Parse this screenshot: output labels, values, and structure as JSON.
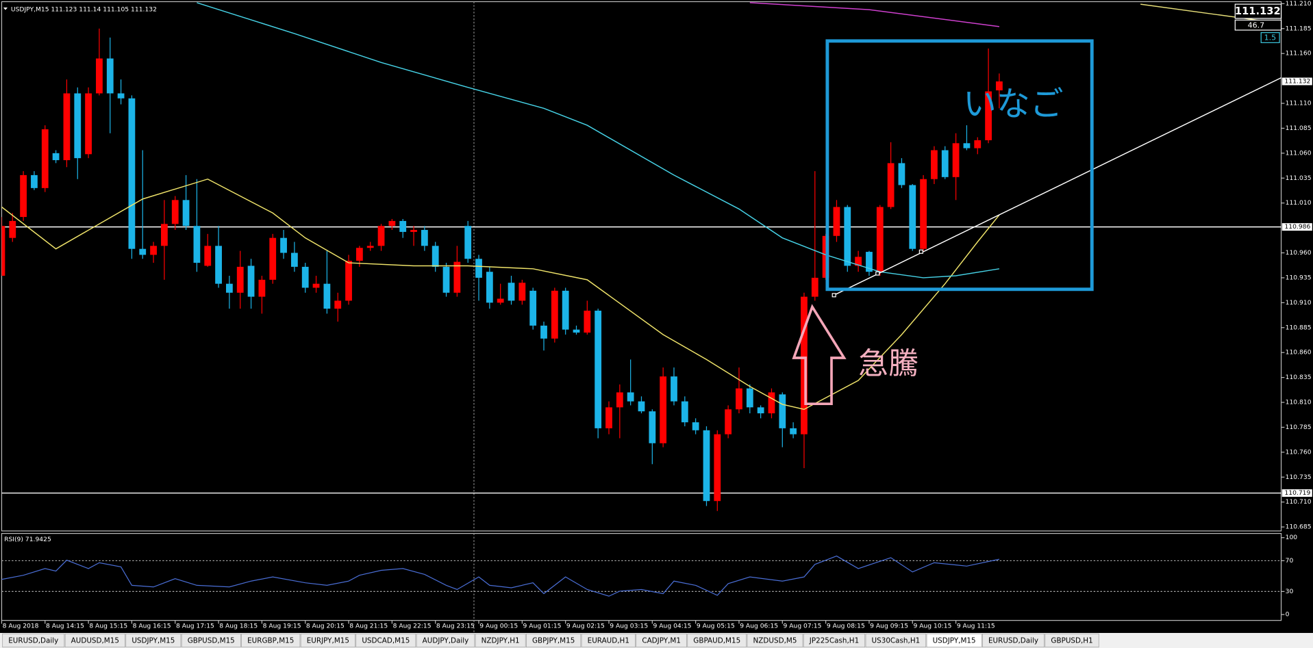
{
  "chart_data": [
    {
      "type": "candlestick",
      "symbol": "USDJPY,M15",
      "up_color": "#ff0000",
      "down_color": "#1cb4e8",
      "xlim": [
        0,
        118
      ],
      "ylim": [
        110.681,
        111.212
      ],
      "xticks": [
        {
          "value": 0,
          "label": "8 Aug 2018"
        },
        {
          "value": 4,
          "label": "8 Aug 14:15"
        },
        {
          "value": 8,
          "label": "8 Aug 15:15"
        },
        {
          "value": 12,
          "label": "8 Aug 16:15"
        },
        {
          "value": 16,
          "label": "8 Aug 17:15"
        },
        {
          "value": 20,
          "label": "8 Aug 18:15"
        },
        {
          "value": 24,
          "label": "8 Aug 19:15"
        },
        {
          "value": 28,
          "label": "8 Aug 20:15"
        },
        {
          "value": 32,
          "label": "8 Aug 21:15"
        },
        {
          "value": 36,
          "label": "8 Aug 22:15"
        },
        {
          "value": 40,
          "label": "8 Aug 23:15"
        },
        {
          "value": 44,
          "label": "9 Aug 00:15"
        },
        {
          "value": 48,
          "label": "9 Aug 01:15"
        },
        {
          "value": 52,
          "label": "9 Aug 02:15"
        },
        {
          "value": 56,
          "label": "9 Aug 03:15"
        },
        {
          "value": 60,
          "label": "9 Aug 04:15"
        },
        {
          "value": 64,
          "label": "9 Aug 05:15"
        },
        {
          "value": 68,
          "label": "9 Aug 06:15"
        },
        {
          "value": 72,
          "label": "9 Aug 07:15"
        },
        {
          "value": 76,
          "label": "9 Aug 08:15"
        },
        {
          "value": 80,
          "label": "9 Aug 09:15"
        },
        {
          "value": 84,
          "label": "9 Aug 10:15"
        },
        {
          "value": 88,
          "label": "9 Aug 11:15"
        }
      ],
      "yticks": [
        {
          "value": 111.21,
          "label": "111.210"
        },
        111.185,
        {
          "value": 111.16,
          "label": "111.160"
        },
        {
          "value": 111.11,
          "label": "111.110"
        },
        111.085,
        {
          "value": 111.06,
          "label": "111.060"
        },
        111.035,
        {
          "value": 111.01,
          "label": "111.010"
        },
        {
          "value": 110.96,
          "label": "110.960"
        },
        110.935,
        {
          "value": 110.91,
          "label": "110.910"
        },
        110.885,
        {
          "value": 110.86,
          "label": "110.860"
        },
        110.835,
        {
          "value": 110.81,
          "label": "110.810"
        },
        110.785,
        {
          "value": 110.76,
          "label": "110.760"
        },
        110.735,
        {
          "value": 110.71,
          "label": "110.710"
        },
        110.685
      ],
      "grid": false,
      "hlines": [
        110.986,
        110.719
      ],
      "hline_color": "#ffffff",
      "open": [
        110.937,
        110.975,
        110.996,
        111.038,
        111.025,
        111.06,
        111.053,
        111.12,
        111.059,
        111.12,
        111.155,
        111.12,
        111.115,
        110.964,
        110.958,
        110.967,
        110.989,
        111.013,
        110.987,
        110.947,
        110.967,
        110.929,
        110.92,
        110.947,
        110.916,
        110.933,
        110.975,
        110.96,
        110.946,
        110.925,
        110.929,
        110.904,
        110.912,
        110.952,
        110.965,
        110.967,
        110.987,
        110.992,
        110.981,
        110.983,
        110.967,
        110.946,
        110.92,
        110.987,
        110.954,
        110.941,
        110.91,
        110.93,
        110.912,
        110.922,
        110.887,
        110.874,
        110.922,
        110.883,
        110.88,
        110.902,
        110.784,
        110.805,
        110.82,
        110.811,
        110.801,
        110.769,
        110.836,
        110.811,
        110.79,
        110.782,
        110.711,
        110.778,
        110.803,
        110.824,
        110.805,
        110.799,
        110.818,
        110.784,
        110.778,
        110.916,
        110.935,
        110.977,
        111.006,
        110.947,
        110.961,
        110.941,
        111.006,
        111.05,
        111.028,
        110.964,
        111.034,
        111.063,
        111.036,
        111.07,
        111.065,
        111.073,
        111.123
      ],
      "high": [
        110.996,
        111.0,
        111.042,
        111.042,
        111.088,
        111.063,
        111.134,
        111.126,
        111.126,
        111.185,
        111.176,
        111.134,
        111.118,
        111.063,
        110.971,
        111.013,
        111.017,
        111.038,
        111.034,
        110.979,
        110.987,
        110.937,
        110.962,
        110.954,
        110.937,
        110.979,
        110.983,
        110.971,
        110.95,
        110.937,
        110.962,
        110.92,
        110.958,
        110.967,
        110.971,
        110.989,
        110.994,
        110.994,
        110.987,
        110.987,
        110.971,
        110.95,
        110.967,
        110.992,
        110.958,
        110.946,
        110.929,
        110.937,
        110.933,
        110.925,
        110.891,
        110.925,
        110.925,
        110.887,
        110.912,
        110.904,
        110.811,
        110.828,
        110.853,
        110.816,
        110.803,
        110.845,
        110.845,
        110.816,
        110.794,
        110.786,
        110.782,
        110.807,
        110.845,
        110.828,
        110.807,
        110.824,
        110.82,
        110.79,
        110.92,
        111.042,
        110.979,
        111.013,
        111.008,
        110.962,
        110.962,
        111.008,
        111.071,
        111.055,
        111.029,
        111.038,
        111.067,
        111.067,
        111.08,
        111.088,
        111.076,
        111.165,
        111.14
      ],
      "low": [
        110.937,
        110.971,
        110.992,
        111.023,
        111.021,
        111.05,
        111.046,
        111.034,
        111.055,
        111.118,
        111.08,
        111.109,
        110.954,
        110.954,
        110.95,
        110.933,
        110.983,
        110.983,
        110.941,
        110.946,
        110.925,
        110.904,
        110.904,
        110.904,
        110.899,
        110.929,
        110.954,
        110.941,
        110.92,
        110.92,
        110.899,
        110.891,
        110.908,
        110.946,
        110.962,
        110.962,
        110.983,
        110.975,
        110.967,
        110.962,
        110.941,
        110.916,
        110.916,
        110.95,
        110.912,
        110.904,
        110.908,
        110.908,
        110.908,
        110.883,
        110.862,
        110.87,
        110.878,
        110.878,
        110.878,
        110.774,
        110.778,
        110.774,
        110.807,
        110.799,
        110.748,
        110.765,
        110.807,
        110.786,
        110.778,
        110.706,
        110.701,
        110.774,
        110.799,
        110.799,
        110.794,
        110.794,
        110.765,
        110.774,
        110.744,
        110.912,
        110.933,
        110.971,
        110.941,
        110.941,
        110.937,
        110.937,
        111.004,
        111.025,
        110.962,
        110.962,
        111.029,
        111.034,
        111.013,
        111.063,
        111.059,
        111.07,
        111.105
      ],
      "close": [
        110.987,
        110.992,
        111.038,
        111.025,
        111.084,
        111.053,
        111.12,
        111.055,
        111.12,
        111.155,
        111.12,
        111.115,
        110.964,
        110.958,
        110.967,
        110.989,
        111.013,
        110.987,
        110.95,
        110.967,
        110.929,
        110.92,
        110.946,
        110.916,
        110.933,
        110.975,
        110.96,
        110.946,
        110.925,
        110.929,
        110.904,
        110.912,
        110.952,
        110.965,
        110.967,
        110.987,
        110.992,
        110.981,
        110.983,
        110.967,
        110.946,
        110.92,
        110.951,
        110.954,
        110.935,
        110.91,
        110.914,
        110.912,
        110.93,
        110.887,
        110.874,
        110.922,
        110.883,
        110.88,
        110.902,
        110.784,
        110.805,
        110.82,
        110.811,
        110.801,
        110.769,
        110.836,
        110.811,
        110.79,
        110.782,
        110.711,
        110.778,
        110.803,
        110.824,
        110.805,
        110.799,
        110.82,
        110.784,
        110.778,
        110.916,
        110.935,
        110.977,
        111.006,
        110.947,
        110.956,
        110.941,
        111.006,
        111.05,
        111.028,
        110.964,
        111.034,
        111.063,
        111.036,
        111.07,
        111.065,
        111.073,
        111.122,
        111.132
      ],
      "overlays": [
        {
          "color": "#f0e46a",
          "x": [
            0,
            5,
            13,
            19,
            25,
            28,
            32,
            38,
            43,
            49,
            54,
            61,
            65,
            69,
            72,
            74,
            79,
            83,
            87,
            90,
            92
          ],
          "values": [
            111.006,
            110.964,
            111.014,
            111.034,
            111.0,
            110.975,
            110.95,
            110.947,
            110.947,
            110.944,
            110.933,
            110.878,
            110.853,
            110.826,
            110.808,
            110.803,
            110.832,
            110.878,
            110.929,
            110.971,
            110.998
          ]
        },
        {
          "color": "#46d2e6",
          "x": [
            18,
            27,
            35,
            43,
            50,
            54,
            62,
            68,
            72,
            76,
            81,
            85,
            88,
            92
          ],
          "values": [
            111.211,
            111.18,
            111.151,
            111.126,
            111.105,
            111.088,
            111.038,
            111.004,
            110.975,
            110.958,
            110.941,
            110.935,
            110.937,
            110.944
          ]
        },
        {
          "color": "#d040d0",
          "x": [
            69,
            80,
            92
          ],
          "values": [
            111.211,
            111.204,
            111.187
          ]
        }
      ],
      "info_labels": [
        46.7,
        1.5
      ],
      "annotations": [
        "いなご",
        "急騰"
      ]
    },
    {
      "type": "line",
      "title": "RSI(9)",
      "color": "#4a6ed6",
      "xlim": [
        0,
        118
      ],
      "ylim": [
        0,
        100
      ],
      "yticks": [
        0,
        30,
        70,
        100
      ],
      "grid": true,
      "x": [
        0,
        2,
        4,
        5,
        6,
        8,
        9,
        11,
        12,
        14,
        16,
        18,
        21,
        23,
        25,
        28,
        30,
        32,
        33,
        35,
        37,
        39,
        41,
        42,
        44,
        45,
        47,
        49,
        50,
        52,
        54,
        56,
        57,
        59,
        61,
        62,
        64,
        66,
        67,
        69,
        72,
        74,
        75,
        77,
        79,
        82,
        84,
        86,
        89,
        92
      ],
      "values": [
        45.7,
        51.1,
        59.8,
        56.5,
        70.7,
        59.8,
        67.4,
        62.0,
        38.0,
        35.9,
        46.7,
        38.0,
        35.9,
        43.5,
        48.9,
        41.3,
        38.0,
        43.5,
        51.1,
        57.5,
        59.8,
        52.2,
        38.0,
        32.6,
        48.9,
        38.0,
        34.8,
        41.3,
        27.2,
        48.9,
        32.6,
        23.9,
        30.4,
        32.6,
        27.2,
        43.5,
        38.0,
        25.0,
        40.2,
        48.9,
        43.5,
        48.9,
        65.2,
        76.1,
        59.8,
        73.9,
        55.4,
        67.4,
        63.0,
        71.9425
      ]
    }
  ],
  "tabs": [
    "EURUSD,Daily",
    "AUDUSD,M15",
    "USDJPY,M15",
    "GBPUSD,M15",
    "EURGBP,M15",
    "EURJPY,M15",
    "USDCAD,M15",
    "AUDJPY,Daily",
    "NZDJPY,H1",
    "GBPJPY,M15",
    "EURAUD,H1",
    "CADJPY,M1",
    "GBPAUD,M15",
    "NZDUSD,M5",
    "JP225Cash,H1",
    "US30Cash,H1",
    "USDJPY,M15",
    "EURUSD,Daily",
    "GBPUSD,H1"
  ],
  "active_tab": 16
}
